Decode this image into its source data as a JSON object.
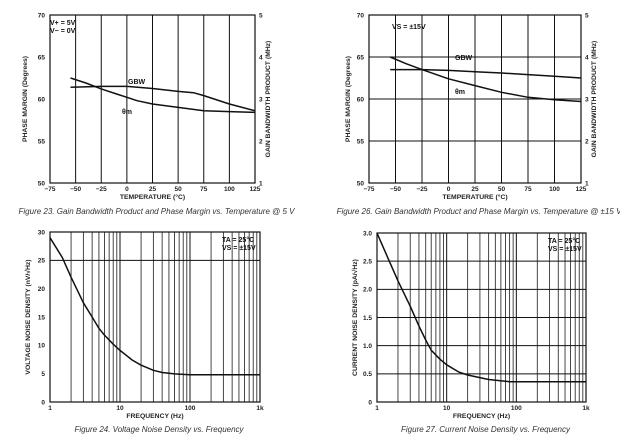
{
  "chart_data": [
    {
      "type": "line",
      "caption": "Figure 23. Gain Bandwidth Product and Phase Margin vs. Temperature @ 5 V",
      "xlabel": "TEMPERATURE (°C)",
      "ylabel": "PHASE MARGIN (Degrees)",
      "y2label": "GAIN BANDWIDTH PRODUCT (MHz)",
      "xlim": [
        -75,
        125
      ],
      "ylim": [
        50,
        70
      ],
      "y2lim": [
        1,
        5
      ],
      "xticks": [
        "−75",
        "−50",
        "−25",
        "0",
        "25",
        "50",
        "75",
        "100",
        "125"
      ],
      "yticks": [
        "50",
        "55",
        "60",
        "65",
        "70"
      ],
      "y2ticks": [
        "1",
        "2",
        "3",
        "4",
        "5"
      ],
      "annotations": [
        "V+ = 5V",
        "V− = 0V"
      ],
      "series": [
        {
          "name": "GBW",
          "axis": "right",
          "x": [
            -55,
            -25,
            0,
            25,
            50,
            65,
            75,
            100,
            125
          ],
          "y": [
            3.28,
            3.3,
            3.3,
            3.25,
            3.18,
            3.15,
            3.08,
            2.88,
            2.72
          ]
        },
        {
          "name": "θm",
          "axis": "left",
          "x": [
            -55,
            -40,
            -25,
            -10,
            0,
            10,
            25,
            50,
            75,
            100,
            125
          ],
          "y": [
            62.5,
            61.9,
            61.2,
            60.6,
            60.2,
            59.8,
            59.4,
            59.0,
            58.6,
            58.5,
            58.4
          ]
        }
      ],
      "grid": "vertical"
    },
    {
      "type": "line",
      "caption": "Figure 26. Gain Bandwidth Product and Phase Margin vs. Temperature @ ±15 V",
      "xlabel": "TEMPERATURE (°C)",
      "ylabel": "PHASE MARGIN (Degrees)",
      "y2label": "GAIN BANDWIDTH PRODUCT (MHz)",
      "xlim": [
        -75,
        125
      ],
      "ylim": [
        50,
        70
      ],
      "y2lim": [
        1,
        5
      ],
      "xticks": [
        "−75",
        "−50",
        "−25",
        "0",
        "25",
        "50",
        "75",
        "100",
        "125"
      ],
      "yticks": [
        "50",
        "55",
        "60",
        "65",
        "70"
      ],
      "y2ticks": [
        "1",
        "2",
        "3",
        "4",
        "5"
      ],
      "annotations": [
        "VS = ±15V"
      ],
      "series": [
        {
          "name": "GBW",
          "axis": "right",
          "x": [
            -55,
            -25,
            0,
            25,
            50,
            75,
            100,
            125
          ],
          "y": [
            3.7,
            3.7,
            3.68,
            3.65,
            3.62,
            3.58,
            3.54,
            3.5
          ]
        },
        {
          "name": "θm",
          "axis": "left",
          "x": [
            -55,
            -40,
            -25,
            0,
            25,
            50,
            75,
            100,
            125
          ],
          "y": [
            65.0,
            64.2,
            63.5,
            62.4,
            61.6,
            60.8,
            60.2,
            59.9,
            59.7
          ]
        }
      ],
      "grid": "both"
    },
    {
      "type": "line",
      "caption": "Figure 24. Voltage Noise Density vs. Frequency",
      "xlabel": "FREQUENCY (Hz)",
      "ylabel": "VOLTAGE NOISE DENSITY (nV/√Hz)",
      "xscale": "log",
      "xlim": [
        1,
        1000
      ],
      "ylim": [
        0,
        30
      ],
      "xticks": [
        "1",
        "10",
        "100",
        "1k"
      ],
      "yticks": [
        "0",
        "5",
        "10",
        "15",
        "20",
        "25",
        "30"
      ],
      "annotations": [
        "TA = 25°C",
        "VS = ±15V"
      ],
      "series": [
        {
          "x": [
            1,
            1.5,
            2,
            3,
            4,
            5,
            6,
            8,
            10,
            15,
            20,
            30,
            40,
            60,
            100,
            1000
          ],
          "y": [
            29,
            25.5,
            22,
            17.5,
            15,
            13,
            11.8,
            10.2,
            9.1,
            7.4,
            6.5,
            5.6,
            5.2,
            4.95,
            4.8,
            4.8
          ]
        }
      ],
      "grid": "log-vertical"
    },
    {
      "type": "line",
      "caption": "Figure 27. Current Noise Density vs. Frequency",
      "xlabel": "FREQUENCY (Hz)",
      "ylabel": "CURRENT NOISE DENSITY (pA/√Hz)",
      "xscale": "log",
      "xlim": [
        1,
        1000
      ],
      "ylim": [
        0,
        3.0
      ],
      "xticks": [
        "1",
        "10",
        "100",
        "1k"
      ],
      "yticks": [
        "0",
        "0.5",
        "1.0",
        "1.5",
        "2.0",
        "2.5",
        "3.0"
      ],
      "annotations": [
        "TA = 25°C",
        "VS = ±15V"
      ],
      "series": [
        {
          "x": [
            1,
            1.5,
            2,
            3,
            4,
            5,
            6,
            8,
            10,
            15,
            20,
            40,
            80,
            1000
          ],
          "y": [
            3.0,
            2.5,
            2.15,
            1.7,
            1.35,
            1.1,
            0.92,
            0.76,
            0.66,
            0.53,
            0.48,
            0.4,
            0.36,
            0.36
          ]
        }
      ],
      "grid": "both"
    }
  ]
}
